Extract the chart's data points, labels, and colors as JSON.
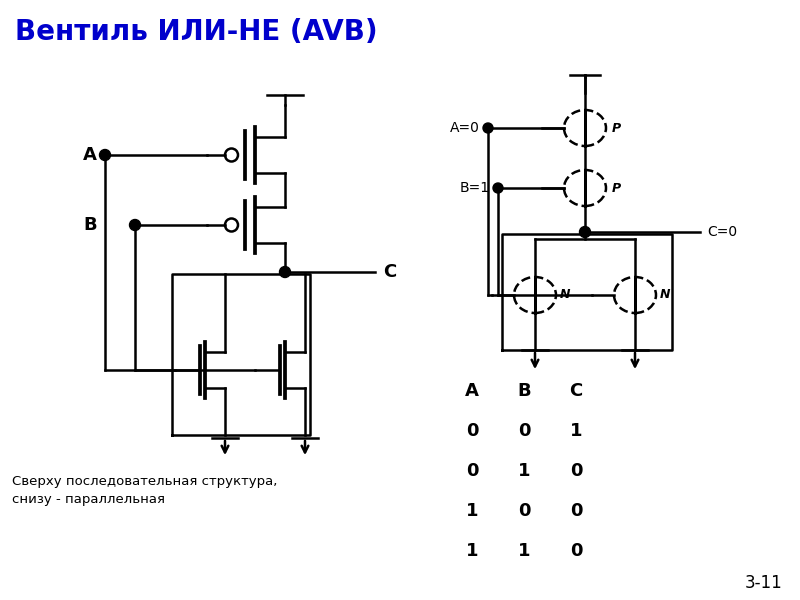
{
  "title": "Вентиль ИЛИ-НЕ (AVB)",
  "title_color": "#0000cc",
  "title_fontsize": 20,
  "background_color": "#ffffff",
  "subtitle": "Сверху последовательная структура,\nснизу - параллельная",
  "page_number": "3-11",
  "truth_table": {
    "headers": [
      "A",
      "B",
      "C"
    ],
    "rows": [
      [
        0,
        0,
        1
      ],
      [
        0,
        1,
        0
      ],
      [
        1,
        0,
        0
      ],
      [
        1,
        1,
        0
      ]
    ]
  },
  "cmos_labels": {
    "A": "A=0",
    "B": "B=1",
    "C": "C=0"
  }
}
